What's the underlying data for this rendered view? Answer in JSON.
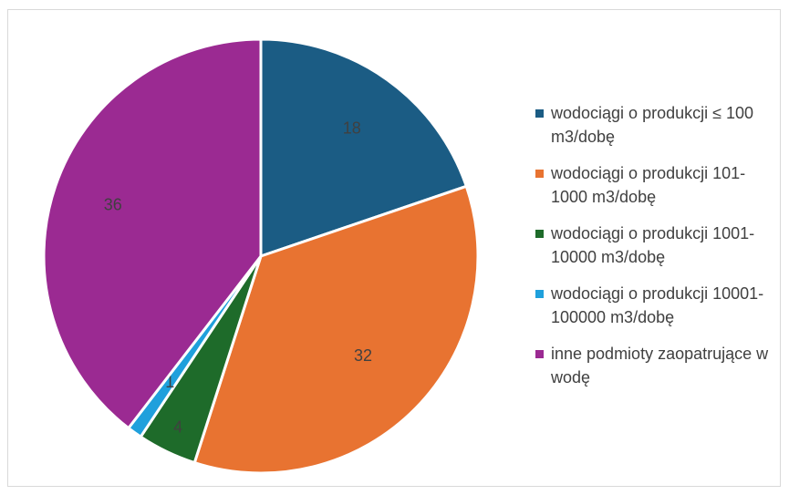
{
  "chart_data": {
    "type": "pie",
    "title": "",
    "values": [
      18,
      32,
      4,
      1,
      36
    ],
    "labels": [
      "wodociągi o produkcji ≤ 100 m3/dobę",
      "wodociągi o produkcji 101-1000 m3/dobę",
      "wodociągi o produkcji 1001-10000 m3/dobę",
      "wodociągi o produkcji 10001-100000 m3/dobę",
      "inne podmioty zaopatrujące w wodę"
    ],
    "data_labels": [
      "18",
      "32",
      "4",
      "1",
      "36"
    ],
    "colors": [
      "#1b5c84",
      "#e87331",
      "#1e6b2a",
      "#1fa0dc",
      "#9b2a92"
    ],
    "legend_position": "right",
    "start_angle_deg": 0,
    "direction": "clockwise"
  },
  "legend": {
    "items": [
      {
        "label": "wodociągi o produkcji ≤ 100 m3/dobę",
        "color": "#1b5c84"
      },
      {
        "label": "wodociągi o produkcji 101-1000 m3/dobę",
        "color": "#e87331"
      },
      {
        "label": "wodociągi o produkcji 1001-10000 m3/dobę",
        "color": "#1e6b2a"
      },
      {
        "label": "wodociągi o produkcji 10001-100000 m3/dobę",
        "color": "#1fa0dc"
      },
      {
        "label": "inne podmioty zaopatrujące w wodę",
        "color": "#9b2a92"
      }
    ]
  }
}
